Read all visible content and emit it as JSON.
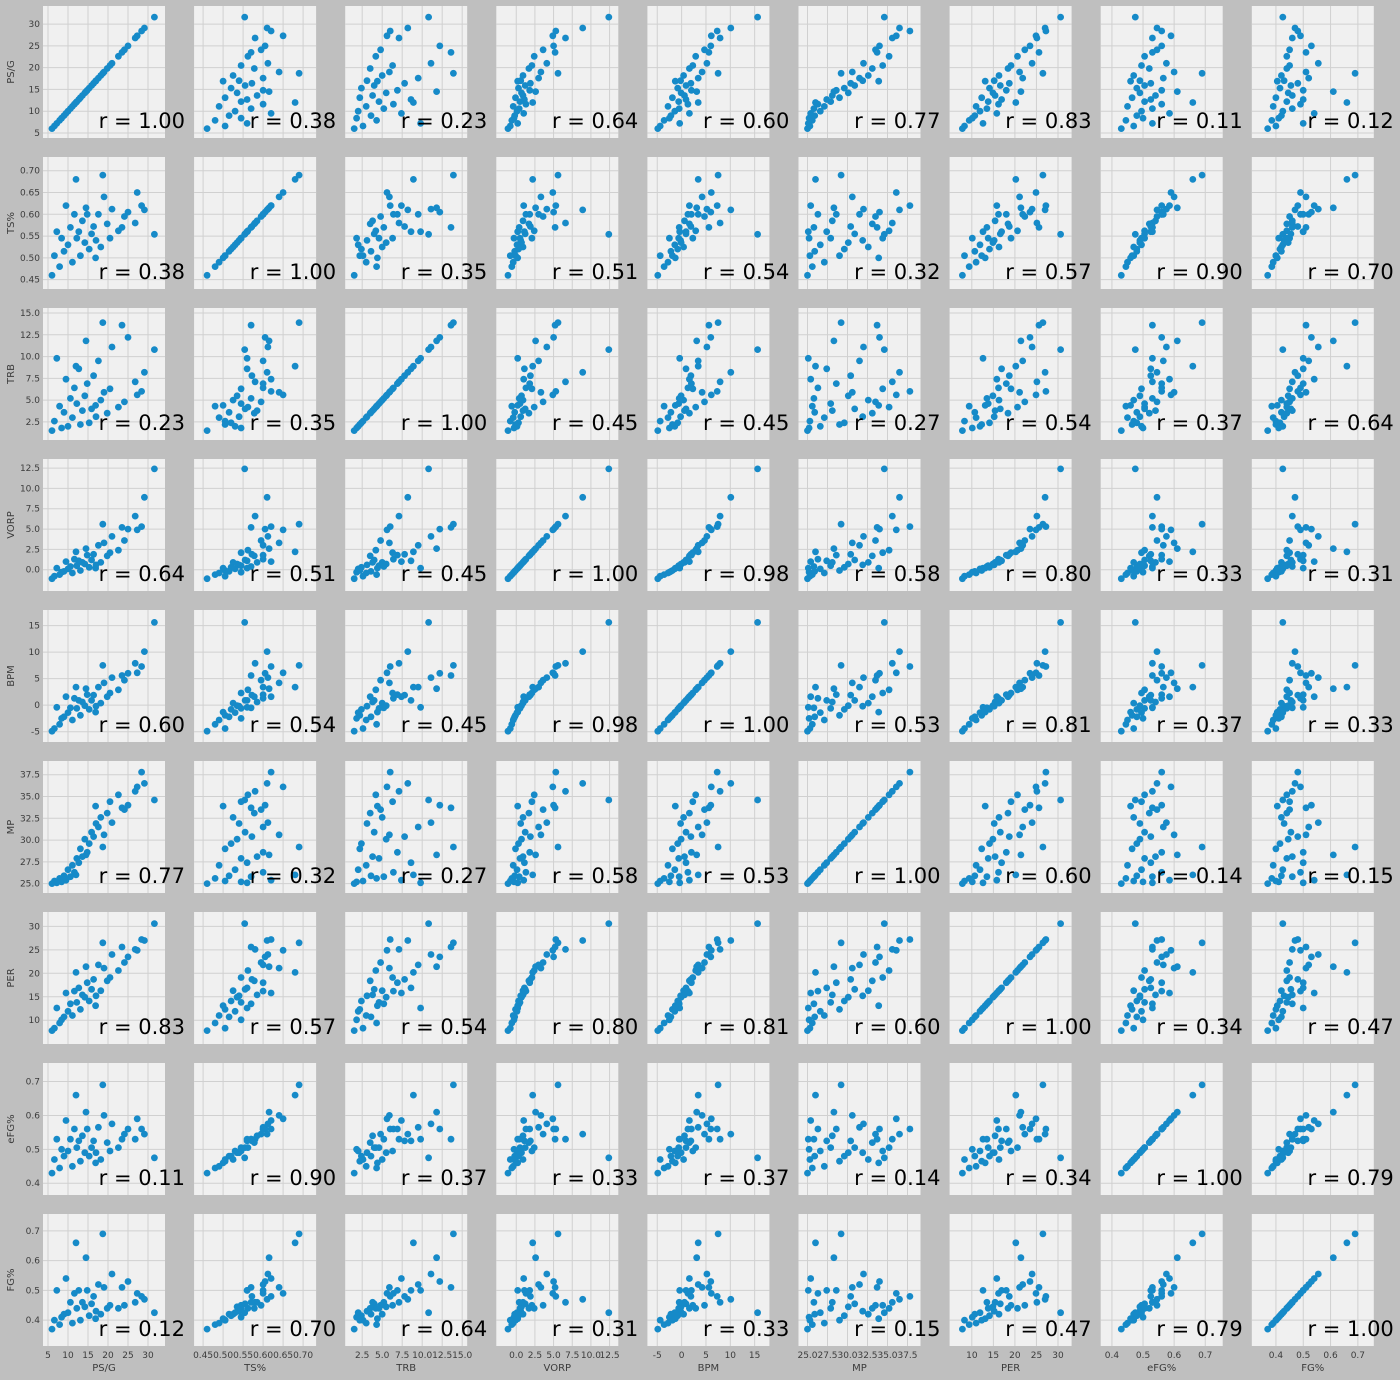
{
  "colors": {
    "background": "#bfbfbf",
    "panel": "#f0f0f0",
    "grid": "#d0d0d0",
    "point": "#168ac8",
    "label": "#000000"
  },
  "chart_data": {
    "type": "scatter",
    "kind": "pair-plot matrix with pairwise Pearson correlation annotation",
    "grid": true,
    "variables": [
      {
        "name": "PS/G",
        "range": [
          5,
          33
        ],
        "ticks": [
          5,
          10,
          15,
          20,
          25,
          30
        ],
        "tick_labels": [
          "5",
          "10",
          "15",
          "20",
          "25",
          "30"
        ]
      },
      {
        "name": "TS%",
        "range": [
          0.44,
          0.72
        ],
        "ticks": [
          0.45,
          0.5,
          0.55,
          0.6,
          0.65,
          0.7
        ],
        "tick_labels": [
          "0.45",
          "0.50",
          "0.55",
          "0.60",
          "0.65",
          "0.70"
        ]
      },
      {
        "name": "TRB",
        "range": [
          1.0,
          15.0
        ],
        "ticks": [
          2.5,
          5,
          7.5,
          10,
          12.5,
          15
        ],
        "tick_labels": [
          "2.5",
          "5.0",
          "7.5",
          "10.0",
          "12.5",
          "15.0"
        ]
      },
      {
        "name": "VORP",
        "range": [
          -2.0,
          13.0
        ],
        "ticks": [
          0,
          2.5,
          5,
          7.5,
          10,
          12.5
        ],
        "tick_labels": [
          "0.0",
          "2.5",
          "5.0",
          "7.5",
          "10.0",
          "12.5"
        ]
      },
      {
        "name": "BPM",
        "range": [
          -6,
          17
        ],
        "ticks": [
          -5,
          0,
          5,
          10,
          15
        ],
        "tick_labels": [
          "-5",
          "0",
          "5",
          "10",
          "15"
        ]
      },
      {
        "name": "MP",
        "range": [
          24.5,
          38.5
        ],
        "ticks": [
          25,
          27.5,
          30,
          32.5,
          35,
          37.5
        ],
        "tick_labels": [
          "25.0",
          "27.5",
          "30.0",
          "32.5",
          "35.0",
          "37.5"
        ]
      },
      {
        "name": "PER",
        "range": [
          6,
          32
        ],
        "ticks": [
          10,
          15,
          20,
          25,
          30
        ],
        "tick_labels": [
          "10",
          "15",
          "20",
          "25",
          "30"
        ]
      },
      {
        "name": "eFG%",
        "range": [
          0.38,
          0.74
        ],
        "ticks": [
          0.4,
          0.5,
          0.6,
          0.7
        ],
        "tick_labels": [
          "0.4",
          "0.5",
          "0.6",
          "0.7"
        ]
      },
      {
        "name": "FG%",
        "range": [
          0.33,
          0.74
        ],
        "ticks": [
          0.4,
          0.5,
          0.6,
          0.7
        ],
        "tick_labels": [
          "0.4",
          "0.5",
          "0.6",
          "0.7"
        ]
      }
    ],
    "correlations": [
      [
        1.0,
        0.38,
        0.23,
        0.64,
        0.6,
        0.77,
        0.83,
        0.11,
        0.12
      ],
      [
        0.38,
        1.0,
        0.35,
        0.51,
        0.54,
        0.32,
        0.57,
        0.9,
        0.7
      ],
      [
        0.23,
        0.35,
        1.0,
        0.45,
        0.45,
        0.27,
        0.54,
        0.37,
        0.64
      ],
      [
        0.64,
        0.51,
        0.45,
        1.0,
        0.98,
        0.58,
        0.8,
        0.33,
        0.31
      ],
      [
        0.6,
        0.54,
        0.45,
        0.98,
        1.0,
        0.53,
        0.81,
        0.37,
        0.33
      ],
      [
        0.77,
        0.32,
        0.27,
        0.58,
        0.53,
        1.0,
        0.6,
        0.14,
        0.15
      ],
      [
        0.83,
        0.57,
        0.54,
        0.8,
        0.81,
        0.6,
        1.0,
        0.34,
        0.47
      ],
      [
        0.11,
        0.9,
        0.37,
        0.33,
        0.37,
        0.14,
        0.34,
        1.0,
        0.79
      ],
      [
        0.12,
        0.7,
        0.64,
        0.31,
        0.33,
        0.15,
        0.47,
        0.79,
        1.0
      ]
    ],
    "data_points": [
      {
        "PS/G": 31.6,
        "TS%": 0.554,
        "TRB": 10.8,
        "VORP": 12.4,
        "BPM": 15.6,
        "MP": 34.6,
        "PER": 30.6,
        "eFG%": 0.475,
        "FG%": 0.425
      },
      {
        "PS/G": 29.1,
        "TS%": 0.61,
        "TRB": 8.2,
        "VORP": 8.9,
        "BPM": 10.1,
        "MP": 36.5,
        "PER": 27.0,
        "eFG%": 0.545,
        "FG%": 0.47
      },
      {
        "PS/G": 28.4,
        "TS%": 0.62,
        "TRB": 6.0,
        "VORP": 5.3,
        "BPM": 7.3,
        "MP": 37.8,
        "PER": 27.2,
        "eFG%": 0.56,
        "FG%": 0.48
      },
      {
        "PS/G": 26.8,
        "TS%": 0.58,
        "TRB": 7.1,
        "VORP": 6.6,
        "BPM": 7.9,
        "MP": 35.6,
        "PER": 25.1,
        "eFG%": 0.53,
        "FG%": 0.46
      },
      {
        "PS/G": 27.3,
        "TS%": 0.65,
        "TRB": 5.6,
        "VORP": 4.9,
        "BPM": 6.1,
        "MP": 36.1,
        "PER": 24.9,
        "eFG%": 0.59,
        "FG%": 0.49
      },
      {
        "PS/G": 25.0,
        "TS%": 0.605,
        "TRB": 12.2,
        "VORP": 5.0,
        "BPM": 6.0,
        "MP": 34.0,
        "PER": 23.5,
        "eFG%": 0.56,
        "FG%": 0.53
      },
      {
        "PS/G": 24.1,
        "TS%": 0.595,
        "TRB": 4.8,
        "VORP": 3.6,
        "BPM": 4.7,
        "MP": 33.5,
        "PER": 22.3,
        "eFG%": 0.545,
        "FG%": 0.45
      },
      {
        "PS/G": 22.6,
        "TS%": 0.562,
        "TRB": 4.2,
        "VORP": 2.4,
        "BPM": 2.9,
        "MP": 35.2,
        "PER": 20.6,
        "eFG%": 0.505,
        "FG%": 0.44
      },
      {
        "PS/G": 21.0,
        "TS%": 0.612,
        "TRB": 11.1,
        "VORP": 4.1,
        "BPM": 5.2,
        "MP": 32.0,
        "PER": 24.0,
        "eFG%": 0.575,
        "FG%": 0.555
      },
      {
        "PS/G": 20.5,
        "TS%": 0.545,
        "TRB": 6.3,
        "VORP": 2.1,
        "BPM": 2.3,
        "MP": 34.4,
        "PER": 19.1,
        "eFG%": 0.495,
        "FG%": 0.45
      },
      {
        "PS/G": 19.8,
        "TS%": 0.578,
        "TRB": 3.5,
        "VORP": 1.7,
        "BPM": 1.6,
        "MP": 33.1,
        "PER": 18.4,
        "eFG%": 0.52,
        "FG%": 0.44
      },
      {
        "PS/G": 18.7,
        "TS%": 0.69,
        "TRB": 13.9,
        "VORP": 5.6,
        "BPM": 7.5,
        "MP": 29.2,
        "PER": 26.5,
        "eFG%": 0.69,
        "FG%": 0.69
      },
      {
        "PS/G": 18.2,
        "TS%": 0.525,
        "TRB": 5.0,
        "VORP": 0.9,
        "BPM": 0.4,
        "MP": 32.6,
        "PER": 16.3,
        "eFG%": 0.47,
        "FG%": 0.42
      },
      {
        "PS/G": 17.6,
        "TS%": 0.6,
        "TRB": 9.5,
        "VORP": 3.0,
        "BPM": 3.4,
        "MP": 31.5,
        "PER": 21.8,
        "eFG%": 0.565,
        "FG%": 0.52
      },
      {
        "PS/G": 17.0,
        "TS%": 0.54,
        "TRB": 3.1,
        "VORP": 0.6,
        "BPM": -0.2,
        "MP": 31.9,
        "PER": 15.2,
        "eFG%": 0.49,
        "FG%": 0.43
      },
      {
        "PS/G": 16.4,
        "TS%": 0.572,
        "TRB": 7.8,
        "VORP": 1.9,
        "BPM": 1.9,
        "MP": 30.4,
        "PER": 18.7,
        "eFG%": 0.525,
        "FG%": 0.48
      },
      {
        "PS/G": 15.9,
        "TS%": 0.555,
        "TRB": 4.0,
        "VORP": 1.2,
        "BPM": 0.9,
        "MP": 30.9,
        "PER": 16.6,
        "eFG%": 0.505,
        "FG%": 0.455
      },
      {
        "PS/G": 15.3,
        "TS%": 0.52,
        "TRB": 2.4,
        "VORP": 0.3,
        "BPM": -0.8,
        "MP": 29.6,
        "PER": 14.1,
        "eFG%": 0.48,
        "FG%": 0.415
      },
      {
        "PS/G": 14.8,
        "TS%": 0.6,
        "TRB": 6.9,
        "VORP": 1.8,
        "BPM": 2.0,
        "MP": 28.6,
        "PER": 18.0,
        "eFG%": 0.56,
        "FG%": 0.5
      },
      {
        "PS/G": 14.2,
        "TS%": 0.535,
        "TRB": 5.5,
        "VORP": 0.7,
        "BPM": -0.1,
        "MP": 30.1,
        "PER": 14.9,
        "eFG%": 0.49,
        "FG%": 0.445
      },
      {
        "PS/G": 13.6,
        "TS%": 0.585,
        "TRB": 3.8,
        "VORP": 0.9,
        "BPM": 0.6,
        "MP": 28.1,
        "PER": 15.4,
        "eFG%": 0.54,
        "FG%": 0.46
      },
      {
        "PS/G": 13.1,
        "TS%": 0.505,
        "TRB": 2.2,
        "VORP": -0.1,
        "BPM": -1.9,
        "MP": 29.0,
        "PER": 12.3,
        "eFG%": 0.465,
        "FG%": 0.4
      },
      {
        "PS/G": 12.7,
        "TS%": 0.56,
        "TRB": 8.6,
        "VORP": 1.1,
        "BPM": 0.9,
        "MP": 27.4,
        "PER": 16.9,
        "eFG%": 0.525,
        "FG%": 0.5
      },
      {
        "PS/G": 12.2,
        "TS%": 0.545,
        "TRB": 4.6,
        "VORP": 0.5,
        "BPM": -0.6,
        "MP": 27.9,
        "PER": 13.8,
        "eFG%": 0.505,
        "FG%": 0.44
      },
      {
        "PS/G": 11.6,
        "TS%": 0.6,
        "TRB": 6.4,
        "VORP": 1.3,
        "BPM": 1.3,
        "MP": 26.3,
        "PER": 16.2,
        "eFG%": 0.56,
        "FG%": 0.49
      },
      {
        "PS/G": 11.1,
        "TS%": 0.49,
        "TRB": 3.0,
        "VORP": -0.4,
        "BPM": -2.8,
        "MP": 27.1,
        "PER": 11.0,
        "eFG%": 0.45,
        "FG%": 0.39
      },
      {
        "PS/G": 10.6,
        "TS%": 0.57,
        "TRB": 5.2,
        "VORP": 0.4,
        "BPM": -0.5,
        "MP": 25.8,
        "PER": 13.5,
        "eFG%": 0.53,
        "FG%": 0.46
      },
      {
        "PS/G": 10.0,
        "TS%": 0.53,
        "TRB": 2.0,
        "VORP": 0.1,
        "BPM": -1.4,
        "MP": 26.6,
        "PER": 11.9,
        "eFG%": 0.495,
        "FG%": 0.425
      },
      {
        "PS/G": 9.5,
        "TS%": 0.62,
        "TRB": 7.4,
        "VORP": 1.0,
        "BPM": 1.6,
        "MP": 25.4,
        "PER": 15.8,
        "eFG%": 0.585,
        "FG%": 0.54
      },
      {
        "PS/G": 9.0,
        "TS%": 0.515,
        "TRB": 3.6,
        "VORP": -0.2,
        "BPM": -2.2,
        "MP": 25.9,
        "PER": 10.7,
        "eFG%": 0.48,
        "FG%": 0.42
      },
      {
        "PS/G": 8.4,
        "TS%": 0.545,
        "TRB": 1.8,
        "VORP": -0.3,
        "BPM": -2.5,
        "MP": 25.2,
        "PER": 10.1,
        "eFG%": 0.5,
        "FG%": 0.41
      },
      {
        "PS/G": 7.9,
        "TS%": 0.48,
        "TRB": 4.3,
        "VORP": -0.6,
        "BPM": -3.6,
        "MP": 25.6,
        "PER": 9.4,
        "eFG%": 0.445,
        "FG%": 0.385
      },
      {
        "PS/G": 7.2,
        "TS%": 0.56,
        "TRB": 9.8,
        "VORP": 0.2,
        "BPM": -0.4,
        "MP": 25.1,
        "PER": 12.6,
        "eFG%": 0.53,
        "FG%": 0.5
      },
      {
        "PS/G": 6.6,
        "TS%": 0.505,
        "TRB": 2.6,
        "VORP": -0.8,
        "BPM": -4.4,
        "MP": 25.3,
        "PER": 8.3,
        "eFG%": 0.47,
        "FG%": 0.4
      },
      {
        "PS/G": 6.0,
        "TS%": 0.46,
        "TRB": 1.5,
        "VORP": -1.1,
        "BPM": -4.9,
        "MP": 25.0,
        "PER": 7.8,
        "eFG%": 0.43,
        "FG%": 0.37
      },
      {
        "PS/G": 23.5,
        "TS%": 0.57,
        "TRB": 13.6,
        "VORP": 5.2,
        "BPM": 5.6,
        "MP": 33.7,
        "PER": 25.6,
        "eFG%": 0.53,
        "FG%": 0.51
      },
      {
        "PS/G": 19.0,
        "TS%": 0.64,
        "TRB": 5.9,
        "VORP": 3.3,
        "BPM": 4.2,
        "MP": 30.6,
        "PER": 21.1,
        "eFG%": 0.6,
        "FG%": 0.51
      },
      {
        "PS/G": 14.5,
        "TS%": 0.615,
        "TRB": 11.8,
        "VORP": 2.6,
        "BPM": 3.1,
        "MP": 28.3,
        "PER": 21.4,
        "eFG%": 0.61,
        "FG%": 0.61
      },
      {
        "PS/G": 12.0,
        "TS%": 0.68,
        "TRB": 8.9,
        "VORP": 2.2,
        "BPM": 3.4,
        "MP": 26.0,
        "PER": 20.2,
        "eFG%": 0.66,
        "FG%": 0.66
      },
      {
        "PS/G": 16.9,
        "TS%": 0.5,
        "TRB": 4.4,
        "VORP": 0.2,
        "BPM": -1.3,
        "MP": 33.9,
        "PER": 13.1,
        "eFG%": 0.46,
        "FG%": 0.405
      }
    ]
  }
}
